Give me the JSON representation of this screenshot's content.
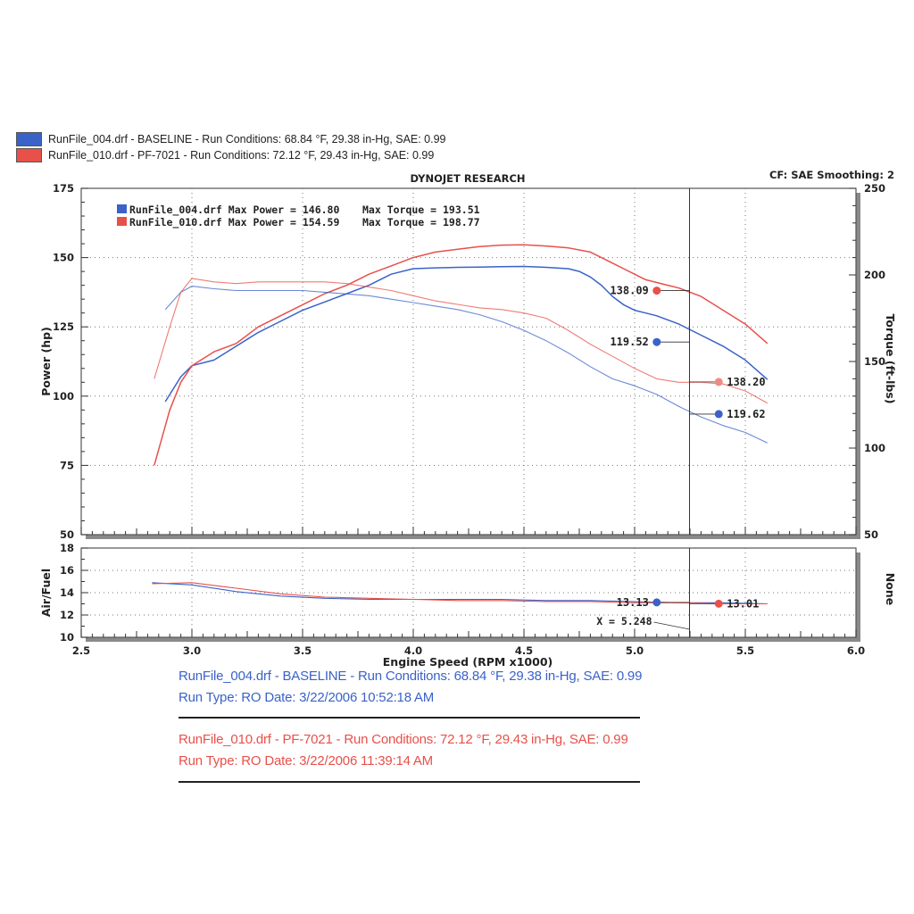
{
  "legend_top": [
    {
      "text": "RunFile_004.drf - BASELINE  -  Run Conditions: 68.84 °F, 29.38 in-Hg, SAE: 0.99",
      "color": "#3a62c8"
    },
    {
      "text": "RunFile_010.drf - PF-7021  -  Run Conditions: 72.12 °F, 29.43 in-Hg, SAE: 0.99",
      "color": "#e8504a"
    }
  ],
  "header": {
    "title": "DYNOJET RESEARCH",
    "cf_text": "CF: SAE  Smoothing: 2"
  },
  "maxbox": [
    {
      "label": "RunFile_004.drf Max Power = 146.80",
      "torque": "Max Torque = 193.51",
      "color": "#3a62c8"
    },
    {
      "label": "RunFile_010.drf Max Power = 154.59",
      "torque": "Max Torque = 198.77",
      "color": "#e8504a"
    }
  ],
  "cursor": {
    "x": 5.248,
    "label": "X = 5.248"
  },
  "bottom": {
    "run1_line1": "RunFile_004.drf - BASELINE  -  Run Conditions: 68.84 °F, 29.38 in-Hg, SAE: 0.99",
    "run1_line2": "Run Type: RO  Date: 3/22/2006 10:52:18 AM",
    "run2_line1": "RunFile_010.drf - PF-7021  -  Run Conditions: 72.12 °F, 29.43 in-Hg, SAE: 0.99",
    "run2_line2": "Run Type: RO  Date: 3/22/2006 11:39:14 AM"
  },
  "chart_data": {
    "type": "line",
    "xlabel": "Engine Speed (RPM x1000)",
    "xlim": [
      2.5,
      6.0
    ],
    "x_ticks": [
      "2.5",
      "3.0",
      "3.5",
      "4.0",
      "4.5",
      "5.0",
      "5.5",
      "6.0"
    ],
    "power": {
      "ylabel": "Power (hp)",
      "ylim": [
        50,
        175
      ],
      "y_ticks": [
        "50",
        "75",
        "100",
        "125",
        "150",
        "175"
      ]
    },
    "torque": {
      "ylabel": "Torque (ft-lbs)",
      "ylim": [
        50,
        250
      ],
      "y_ticks": [
        "50",
        "100",
        "150",
        "200",
        "250"
      ]
    },
    "af": {
      "ylabel": "Air/Fuel",
      "ylim": [
        10,
        18
      ],
      "y_ticks": [
        "10",
        "12",
        "14",
        "16",
        "18"
      ],
      "right_label": "None"
    },
    "grid": true,
    "series": [
      {
        "name": "RunFile_004.drf - BASELINE",
        "metric": "power",
        "axis": "power",
        "color": "#3a62c8",
        "x": [
          2.88,
          2.95,
          3.0,
          3.1,
          3.2,
          3.3,
          3.4,
          3.5,
          3.6,
          3.7,
          3.8,
          3.9,
          4.0,
          4.1,
          4.2,
          4.3,
          4.4,
          4.5,
          4.6,
          4.7,
          4.75,
          4.8,
          4.85,
          4.9,
          4.95,
          5.0,
          5.05,
          5.1,
          5.2,
          5.3,
          5.4,
          5.5,
          5.6
        ],
        "y": [
          98,
          107,
          111,
          113,
          118,
          123,
          127,
          131,
          134,
          137,
          140,
          144,
          146,
          146.3,
          146.5,
          146.6,
          146.7,
          146.8,
          146.5,
          146,
          145,
          143,
          140,
          136,
          133,
          131,
          130,
          129,
          126,
          122,
          118,
          113,
          106
        ]
      },
      {
        "name": "RunFile_010.drf - PF-7021",
        "metric": "power",
        "axis": "power",
        "color": "#e8504a",
        "x": [
          2.83,
          2.9,
          2.95,
          3.0,
          3.1,
          3.2,
          3.3,
          3.4,
          3.5,
          3.6,
          3.7,
          3.8,
          3.9,
          4.0,
          4.1,
          4.2,
          4.3,
          4.4,
          4.5,
          4.6,
          4.7,
          4.8,
          4.85,
          4.9,
          4.95,
          5.0,
          5.05,
          5.1,
          5.15,
          5.2,
          5.3,
          5.4,
          5.5,
          5.6
        ],
        "y": [
          75,
          95,
          105,
          111,
          116,
          119,
          125,
          129,
          133,
          137,
          140,
          144,
          147,
          150,
          152,
          153,
          154,
          154.5,
          154.6,
          154.2,
          153.5,
          152,
          150,
          148,
          146,
          144,
          142,
          141,
          140,
          139,
          136,
          131,
          126,
          119
        ]
      },
      {
        "name": "RunFile_004.drf - BASELINE",
        "metric": "torque",
        "axis": "torque",
        "color": "#3a62c8",
        "x": [
          2.88,
          2.95,
          3.0,
          3.1,
          3.2,
          3.3,
          3.4,
          3.5,
          3.6,
          3.7,
          3.8,
          3.9,
          4.0,
          4.1,
          4.2,
          4.3,
          4.4,
          4.5,
          4.6,
          4.7,
          4.8,
          4.9,
          5.0,
          5.1,
          5.2,
          5.3,
          5.4,
          5.5,
          5.6
        ],
        "y": [
          180,
          190,
          193.5,
          192,
          191,
          191,
          191,
          191,
          190,
          189,
          188,
          186,
          184,
          182,
          180,
          177,
          173,
          168,
          162,
          155,
          147,
          140,
          136,
          131,
          124,
          118,
          113,
          109,
          103
        ]
      },
      {
        "name": "RunFile_010.drf - PF-7021",
        "metric": "torque",
        "axis": "torque",
        "color": "#e8504a",
        "x": [
          2.83,
          2.9,
          2.95,
          3.0,
          3.1,
          3.2,
          3.3,
          3.4,
          3.5,
          3.6,
          3.7,
          3.8,
          3.9,
          4.0,
          4.1,
          4.2,
          4.3,
          4.4,
          4.5,
          4.6,
          4.7,
          4.8,
          4.9,
          5.0,
          5.1,
          5.2,
          5.3,
          5.4,
          5.5,
          5.6
        ],
        "y": [
          140,
          170,
          190,
          198,
          196,
          195,
          196,
          196,
          196,
          196,
          195,
          193,
          191,
          188,
          185,
          183,
          181,
          180,
          178,
          175,
          168,
          160,
          153,
          146,
          140,
          138,
          138,
          137,
          133,
          126
        ]
      },
      {
        "name": "RunFile_004.drf - BASELINE",
        "metric": "af",
        "axis": "af",
        "color": "#3a62c8",
        "x": [
          2.82,
          3.0,
          3.2,
          3.4,
          3.6,
          3.8,
          4.0,
          4.2,
          4.4,
          4.6,
          4.8,
          5.0,
          5.2,
          5.4,
          5.6
        ],
        "y": [
          14.9,
          14.7,
          14.1,
          13.7,
          13.5,
          13.4,
          13.4,
          13.4,
          13.4,
          13.3,
          13.3,
          13.2,
          13.1,
          13.1,
          13.0
        ]
      },
      {
        "name": "RunFile_010.drf - PF-7021",
        "metric": "af",
        "axis": "af",
        "color": "#e8504a",
        "x": [
          2.82,
          3.0,
          3.2,
          3.4,
          3.6,
          3.8,
          4.0,
          4.2,
          4.4,
          4.6,
          4.8,
          5.0,
          5.2,
          5.4,
          5.6
        ],
        "y": [
          14.8,
          14.9,
          14.4,
          13.9,
          13.6,
          13.5,
          13.4,
          13.3,
          13.3,
          13.2,
          13.2,
          13.1,
          13.1,
          13.0,
          13.0
        ]
      }
    ],
    "point_labels": [
      {
        "text": "138.09",
        "x": 5.1,
        "y": 138.09,
        "axis": "power",
        "color": "#e8504a"
      },
      {
        "text": "119.52",
        "x": 5.1,
        "y": 119.52,
        "axis": "power",
        "color": "#3a62c8"
      },
      {
        "text": "138.20",
        "x": 5.38,
        "y": 138.2,
        "axis": "torque",
        "color": "#f08a84"
      },
      {
        "text": "119.62",
        "x": 5.38,
        "y": 119.62,
        "axis": "torque",
        "color": "#3a62c8"
      },
      {
        "text": "13.13",
        "x": 5.1,
        "y": 13.13,
        "axis": "af",
        "color": "#3a62c8"
      },
      {
        "text": "13.01",
        "x": 5.38,
        "y": 13.01,
        "axis": "af",
        "color": "#e8504a"
      }
    ]
  }
}
